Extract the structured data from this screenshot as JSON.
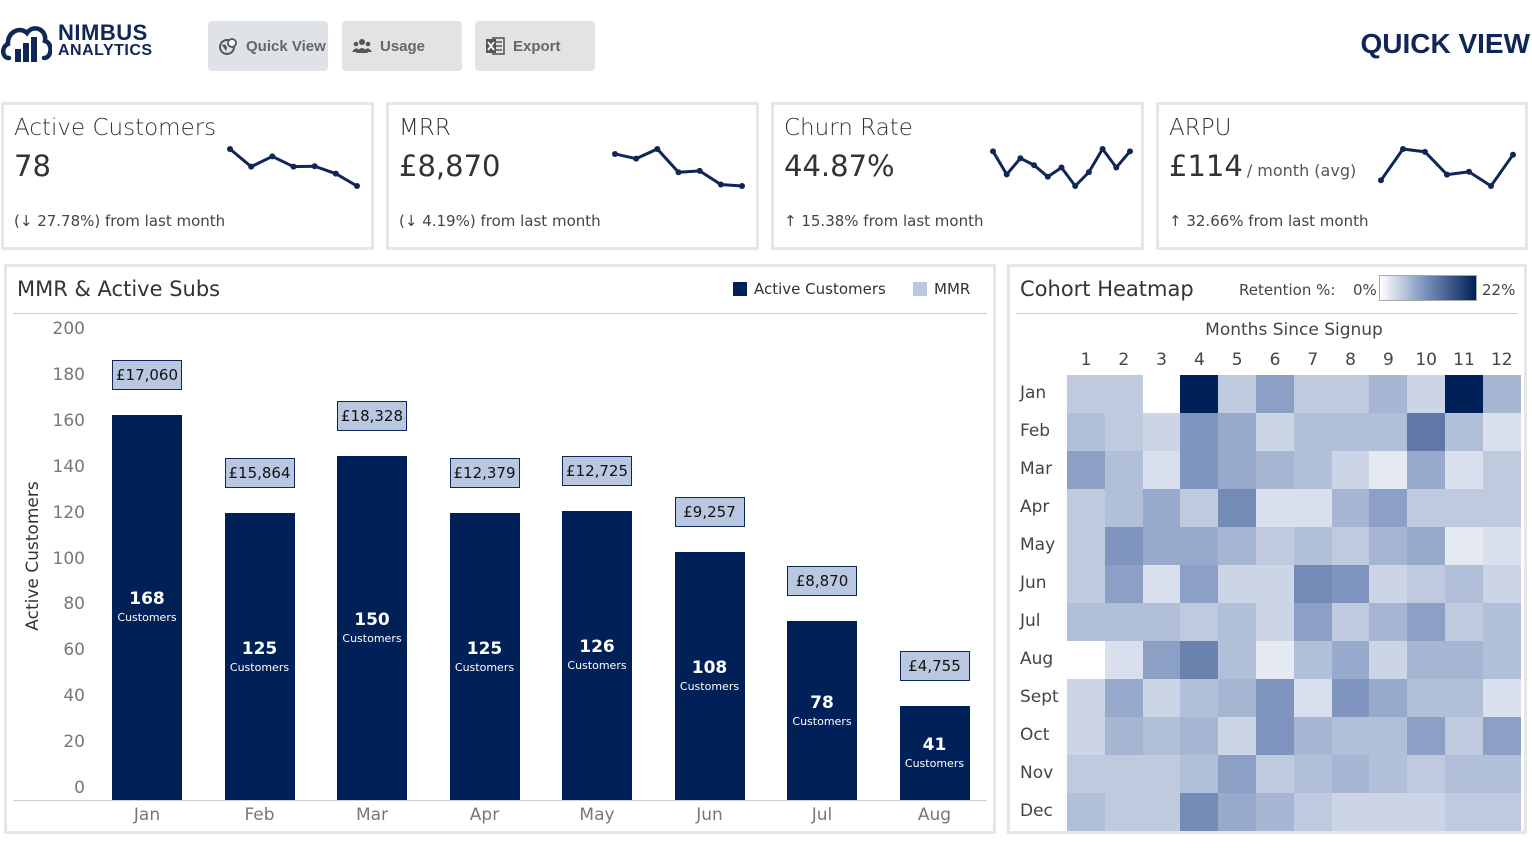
{
  "brand": {
    "line1": "NIMBUS",
    "line2": "ANALYTICS",
    "color": "#0f2657"
  },
  "nav": [
    {
      "label": "Quick View",
      "icon": "globe-icon",
      "active": true
    },
    {
      "label": "Usage",
      "icon": "users-icon",
      "active": false
    },
    {
      "label": "Export",
      "icon": "excel-icon",
      "active": false
    }
  ],
  "page_title": "QUICK VIEW",
  "kpis": [
    {
      "title": "Active Customers",
      "value": "78",
      "suffix": "",
      "delta": "(↓ 27.78%) from last month",
      "spark": [
        168,
        125,
        150,
        125,
        126,
        108,
        78
      ]
    },
    {
      "title": "MRR",
      "value": "£8,870",
      "suffix": "",
      "delta": "(↓ 4.19%) from last month",
      "spark": [
        17060,
        15864,
        18328,
        12379,
        12725,
        9257,
        8870
      ]
    },
    {
      "title": "Churn Rate",
      "value": "44.87%",
      "suffix": "",
      "delta": "↑ 15.38% from last month",
      "spark": [
        40,
        30,
        37,
        34,
        29,
        33,
        25,
        31,
        41,
        33,
        40
      ]
    },
    {
      "title": "ARPU",
      "value": "£114",
      "suffix": "/ month (avg)",
      "delta": "↑ 32.66% from last month",
      "spark": [
        90,
        101,
        100,
        92,
        93,
        88,
        99
      ]
    }
  ],
  "bar_panel": {
    "title": "MMR & Active Subs",
    "legend": [
      {
        "label": "Active Customers",
        "color": "#002157"
      },
      {
        "label": "MMR",
        "color": "#b9c8e0"
      }
    ]
  },
  "heatmap_panel": {
    "title": "Cohort Heatmap",
    "legend_label": "Retention %:",
    "legend_min": "0%",
    "legend_max": "22%",
    "col_header": "Months Since Signup"
  },
  "chart_data": [
    {
      "type": "bar",
      "title": "MMR & Active Subs",
      "xlabel": "",
      "ylabel": "Active Customers",
      "ylim": [
        0,
        200
      ],
      "yticks": [
        0,
        20,
        40,
        60,
        80,
        100,
        120,
        140,
        160,
        180,
        200
      ],
      "categories": [
        "Jan",
        "Feb",
        "Mar",
        "Apr",
        "May",
        "Jun",
        "Jul",
        "Aug"
      ],
      "series": [
        {
          "name": "Active Customers",
          "values": [
            168,
            125,
            150,
            125,
            126,
            108,
            78,
            41
          ],
          "unit_label": "Customers"
        },
        {
          "name": "MMR",
          "values": [
            17060,
            15864,
            18328,
            12379,
            12725,
            9257,
            8870,
            4755
          ],
          "labels": [
            "£17,060",
            "£15,864",
            "£18,328",
            "£12,379",
            "£12,725",
            "£9,257",
            "£8,870",
            "£4,755"
          ]
        }
      ]
    },
    {
      "type": "heatmap",
      "title": "Cohort Heatmap",
      "xlabel": "Months Since Signup",
      "x": [
        "1",
        "2",
        "3",
        "4",
        "5",
        "6",
        "7",
        "8",
        "9",
        "10",
        "11",
        "12"
      ],
      "y": [
        "Jan",
        "Feb",
        "Mar",
        "Apr",
        "May",
        "Jun",
        "Jul",
        "Aug",
        "Sept",
        "Oct",
        "Nov",
        "Dec"
      ],
      "range": [
        0,
        22
      ],
      "unit": "%",
      "values": [
        [
          5,
          5,
          0,
          22,
          5,
          9,
          5,
          5,
          7,
          4,
          22,
          7
        ],
        [
          6,
          5,
          4,
          10,
          8,
          4,
          6,
          6,
          6,
          13,
          6,
          3
        ],
        [
          9,
          6,
          3,
          10,
          8,
          7,
          6,
          4,
          2,
          8,
          3,
          5
        ],
        [
          5,
          6,
          8,
          5,
          11,
          3,
          3,
          7,
          9,
          5,
          5,
          5
        ],
        [
          5,
          10,
          8,
          8,
          7,
          5,
          6,
          5,
          7,
          8,
          2,
          3
        ],
        [
          5,
          9,
          3,
          9,
          4,
          4,
          11,
          10,
          4,
          5,
          6,
          4
        ],
        [
          6,
          6,
          6,
          5,
          6,
          4,
          9,
          5,
          7,
          9,
          5,
          6
        ],
        [
          0,
          3,
          9,
          12,
          6,
          2,
          6,
          8,
          4,
          7,
          7,
          6
        ],
        [
          4,
          8,
          4,
          6,
          7,
          10,
          3,
          10,
          8,
          6,
          6,
          3
        ],
        [
          4,
          7,
          6,
          7,
          4,
          10,
          7,
          6,
          6,
          9,
          5,
          9
        ],
        [
          5,
          5,
          5,
          6,
          9,
          5,
          6,
          7,
          6,
          5,
          6,
          6
        ],
        [
          6,
          5,
          5,
          11,
          8,
          7,
          5,
          4,
          4,
          4,
          5,
          5
        ]
      ]
    }
  ]
}
